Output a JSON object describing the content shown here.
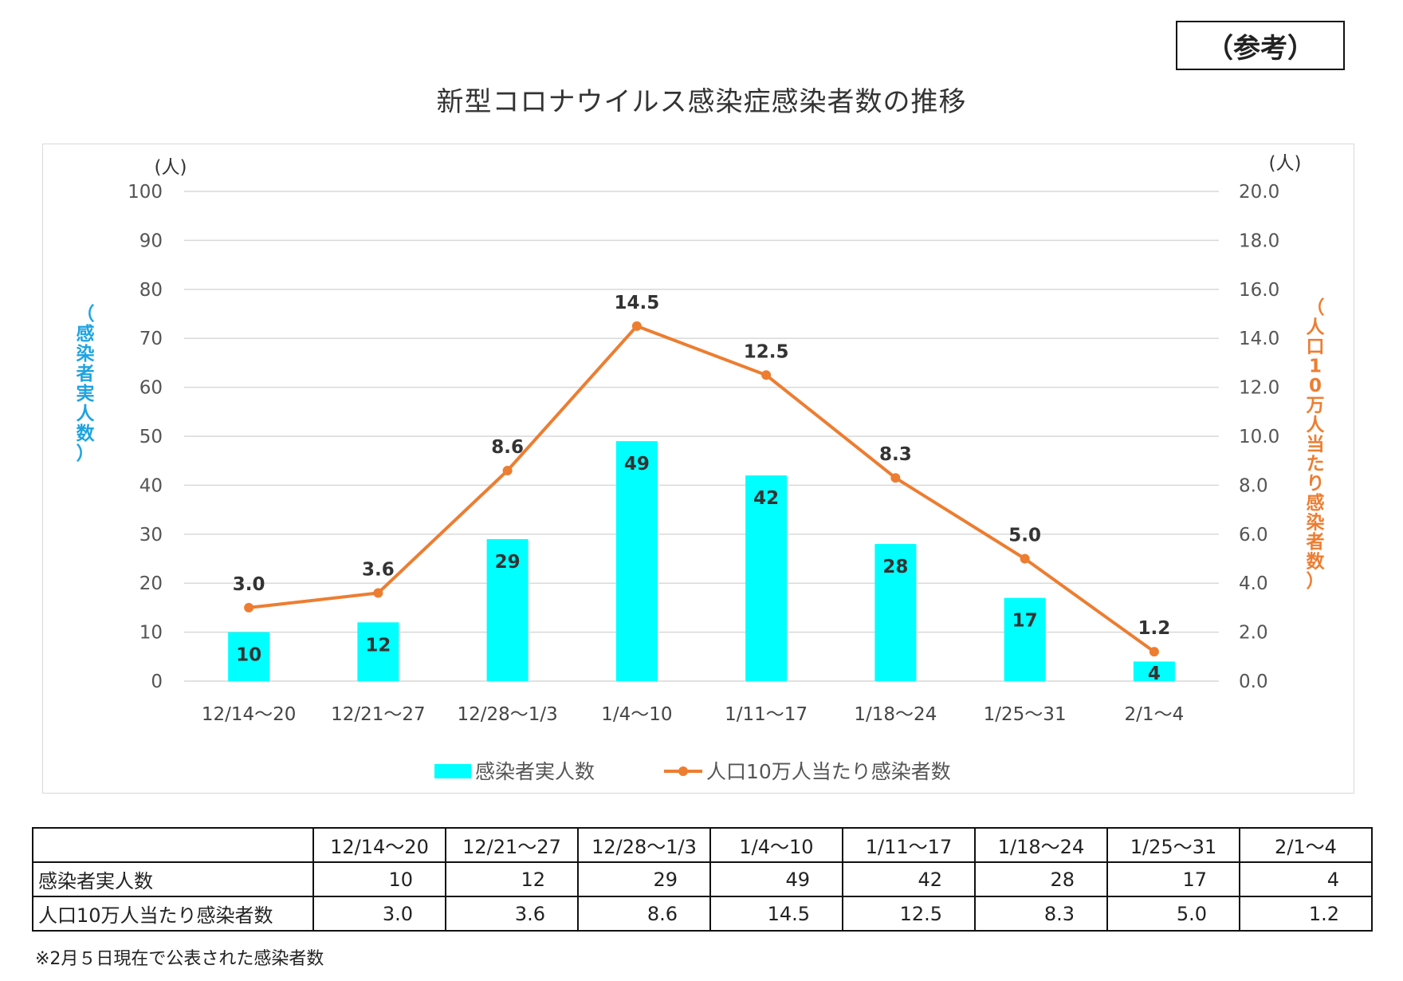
{
  "reference_label": "（参考）",
  "title": "新型コロナウイルス感染症感染者数の推移",
  "chart_data": {
    "type": "bar+line",
    "title": "新型コロナウイルス感染症感染者数の推移",
    "categories": [
      "12/14～20",
      "12/21～27",
      "12/28～1/3",
      "1/4～10",
      "1/11～17",
      "1/18～24",
      "1/25～31",
      "2/1～4"
    ],
    "series": [
      {
        "name": "感染者実人数",
        "type": "bar",
        "axis": "left",
        "color": "#00ffff",
        "values": [
          10,
          12,
          29,
          49,
          42,
          28,
          17,
          4
        ],
        "labels": [
          "10",
          "12",
          "29",
          "49",
          "42",
          "28",
          "17",
          "4"
        ]
      },
      {
        "name": "人口10万人当たり感染者数",
        "type": "line",
        "axis": "right",
        "color": "#ed7d31",
        "values": [
          3.0,
          3.6,
          8.6,
          14.5,
          12.5,
          8.3,
          5.0,
          1.2
        ],
        "labels": [
          "3.0",
          "3.6",
          "8.6",
          "14.5",
          "12.5",
          "8.3",
          "5.0",
          "1.2"
        ]
      }
    ],
    "y_left": {
      "label": "（感染者実人数）",
      "unit": "(人)",
      "ylim": [
        0,
        100
      ],
      "ticks": [
        "0",
        "10",
        "20",
        "30",
        "40",
        "50",
        "60",
        "70",
        "80",
        "90",
        "100"
      ],
      "color": "#1fa3e0"
    },
    "y_right": {
      "label": "（人口10万人当たり感染者数）",
      "unit": "(人)",
      "ylim": [
        0,
        20
      ],
      "ticks": [
        "0.0",
        "2.0",
        "4.0",
        "6.0",
        "8.0",
        "10.0",
        "12.0",
        "14.0",
        "16.0",
        "18.0",
        "20.0"
      ],
      "color": "#ed7d31"
    },
    "grid": true,
    "legend_position": "bottom"
  },
  "table": {
    "headers": [
      "",
      "12/14～20",
      "12/21～27",
      "12/28～1/3",
      "1/4～10",
      "1/11～17",
      "1/18～24",
      "1/25～31",
      "2/1～4"
    ],
    "rows": [
      {
        "label": "感染者実人数",
        "cells": [
          "10",
          "12",
          "29",
          "49",
          "42",
          "28",
          "17",
          "4"
        ]
      },
      {
        "label": "人口10万人当たり感染者数",
        "cells": [
          "3.0",
          "3.6",
          "8.6",
          "14.5",
          "12.5",
          "8.3",
          "5.0",
          "1.2"
        ]
      }
    ]
  },
  "footnote": "※2月５日現在で公表された感染者数"
}
